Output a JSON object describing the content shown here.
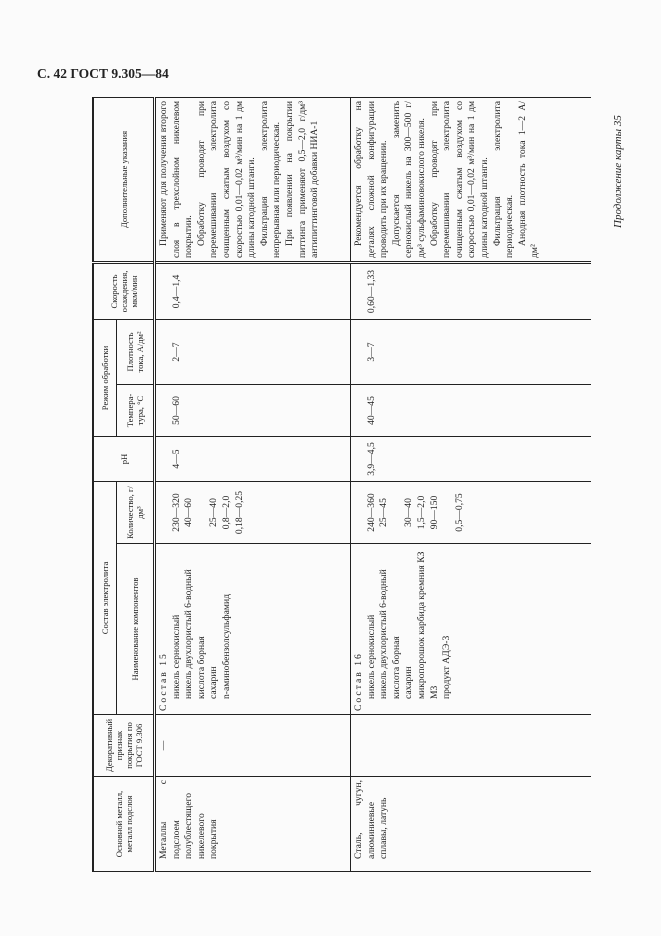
{
  "page_title": "С. 42 ГОСТ 9.305—84",
  "continuation": "Продолжение карты 35",
  "headers": {
    "base_metal": "Основной металл, металл подслоя",
    "decorative": "Декоративный признак покрытия по ГОСТ 9.306",
    "electrolyte": "Состав электролита",
    "component_name": "Наименование компонентов",
    "quantity": "Количество, г/дм³",
    "ph": "pH",
    "mode": "Режим обработки",
    "temperature": "Темпера­тура, °С",
    "current_density": "Плотность тока, А/дм²",
    "deposition_rate": "Скорость осажде­ния, мкм/мин",
    "notes": "Дополнительные указания"
  },
  "rows": [
    {
      "base_metal": "Металлы с подслоем полублестящего никелевого покрытия",
      "decorative": "—",
      "composition_title": "Состав 15",
      "components": [
        {
          "name": "никель сернокислый",
          "qty": "230—320"
        },
        {
          "name": "никель двухлористый 6-водный",
          "qty": "40—60"
        },
        {
          "name": "кислота борная",
          "qty": "25—40"
        },
        {
          "name": "сахарин",
          "qty": "0,8—2,0"
        },
        {
          "name": "n-аминобензолсульфамид",
          "qty": "0,18—0,25"
        }
      ],
      "ph": "4—5",
      "temperature": "50—60",
      "current_density": "2—7",
      "deposition_rate": "0,4—1,4",
      "notes": [
        "Применяют для получения второго слоя в трехслойном никелевом покрытии.",
        "Обработку проводят при перемешивании электролита очищенным сжатым воздухом со скоростью 0,01—0,02 м³/мин на 1 дм длины катодной штанги.",
        "Фильтрация электролита непрерывная или периодическая.",
        "При появлении на покрытии питтинга применяют 0,5—2,0 г/дм³ антипиттинговой добавки НИА-1"
      ]
    },
    {
      "base_metal": "Сталь, чугун, алюминиевые сплавы, латунь",
      "decorative": "",
      "composition_title": "Состав 16",
      "components": [
        {
          "name": "никель сернокислый",
          "qty": "240—360"
        },
        {
          "name": "никель двухлористый 6-водный",
          "qty": "25—45"
        },
        {
          "name": "кислота борная",
          "qty": "30—40"
        },
        {
          "name": "сахарин",
          "qty": "1,5—2,0"
        },
        {
          "name": "микропорошок карбида кремния КЗ М3",
          "qty": "90—150"
        },
        {
          "name": "продукт АДЭ-3",
          "qty": "0,5—0,75"
        }
      ],
      "ph": "3,9—4,5",
      "temperature": "40—45",
      "current_density": "3—7",
      "deposition_rate": "0,60—1,33",
      "notes": [
        "Рекомендуется обработку на деталях сложной конфигурации проводить при их вращении.",
        "Допускается заменить сернокислый никель на 300—500 г/дм³ сульфаминовокислого никеля.",
        "Обработку проводят при перемешивании электролита очищенным сжатым воздухом со скоростью 0,01—0,02 м³/мин на 1 дм длины катодной штанги.",
        "Фильтрация электролита периодическая.",
        "Анодная плотность тока 1—2 А/дм²"
      ]
    }
  ]
}
